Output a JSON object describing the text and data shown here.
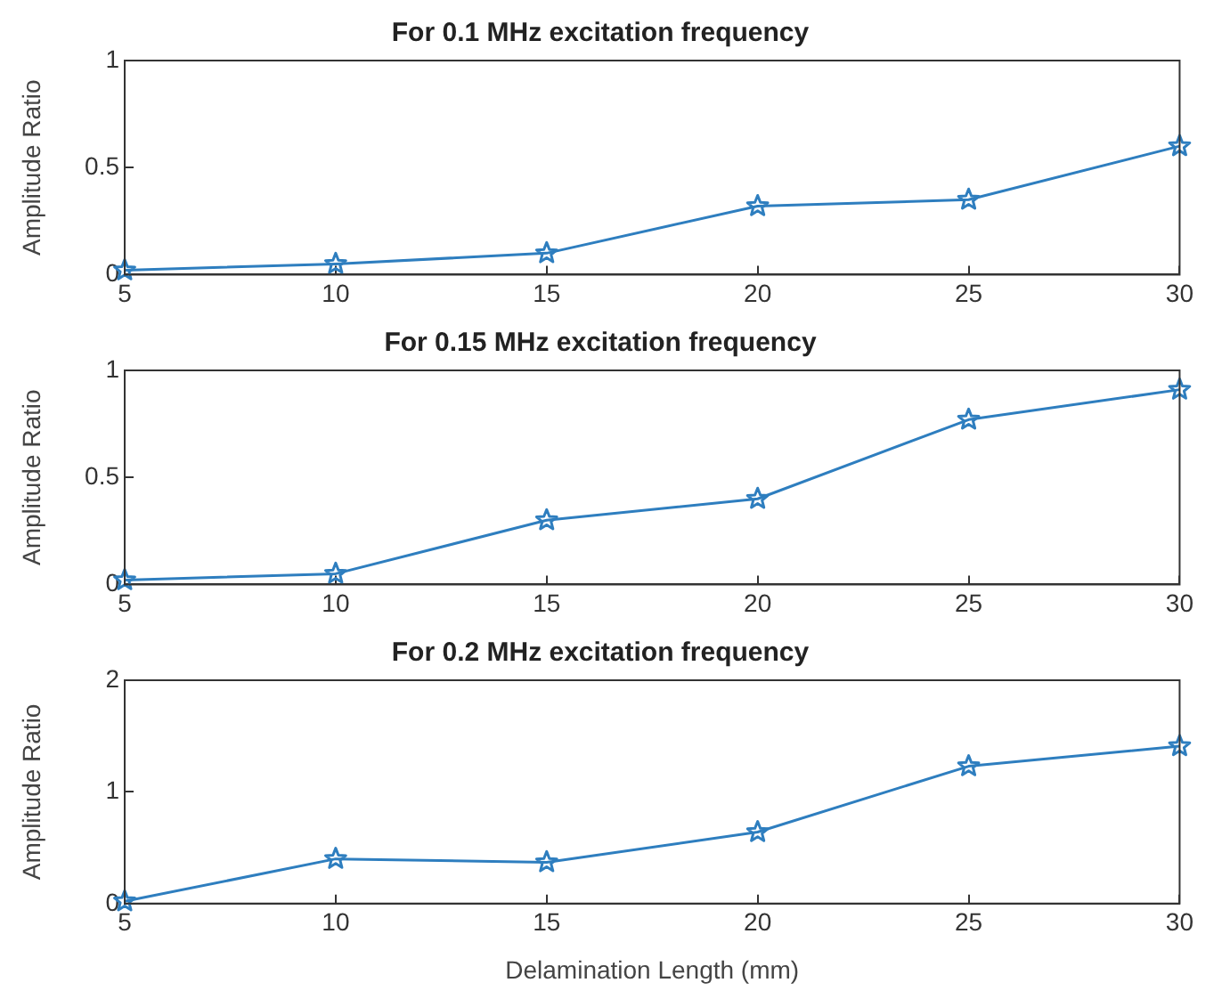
{
  "chart_data": [
    {
      "type": "line",
      "title": "For 0.1 MHz excitation frequency",
      "ylabel": "Amplitude Ratio",
      "x": [
        5,
        10,
        15,
        20,
        25,
        30
      ],
      "series": [
        {
          "color": "#2e7ebf",
          "values": [
            0.02,
            0.05,
            0.1,
            0.32,
            0.35,
            0.6
          ]
        }
      ],
      "xlim": [
        5,
        30
      ],
      "xticks": [
        5,
        10,
        15,
        20,
        25,
        30
      ],
      "ylim": [
        0,
        1
      ],
      "yticks": [
        0,
        0.5,
        1
      ],
      "grid": false,
      "legend": false,
      "marker": "star",
      "line_style": "solid"
    },
    {
      "type": "line",
      "title": "For 0.15 MHz excitation frequency",
      "ylabel": "Amplitude Ratio",
      "x": [
        5,
        10,
        15,
        20,
        25,
        30
      ],
      "series": [
        {
          "color": "#2e7ebf",
          "values": [
            0.02,
            0.05,
            0.3,
            0.4,
            0.77,
            0.91
          ]
        }
      ],
      "xlim": [
        5,
        30
      ],
      "xticks": [
        5,
        10,
        15,
        20,
        25,
        30
      ],
      "ylim": [
        0,
        1
      ],
      "yticks": [
        0,
        0.5,
        1
      ],
      "grid": false,
      "legend": false,
      "marker": "star",
      "line_style": "solid"
    },
    {
      "type": "line",
      "title": "For 0.2 MHz excitation frequency",
      "xlabel": "Delamination Length (mm)",
      "ylabel": "Amplitude Ratio",
      "x": [
        5,
        10,
        15,
        20,
        25,
        30
      ],
      "series": [
        {
          "color": "#2e7ebf",
          "values": [
            0.02,
            0.4,
            0.37,
            0.64,
            1.23,
            1.41
          ]
        }
      ],
      "xlim": [
        5,
        30
      ],
      "xticks": [
        5,
        10,
        15,
        20,
        25,
        30
      ],
      "ylim": [
        0,
        2
      ],
      "yticks": [
        0,
        1,
        2
      ],
      "grid": false,
      "legend": false,
      "marker": "star",
      "line_style": "solid"
    }
  ]
}
